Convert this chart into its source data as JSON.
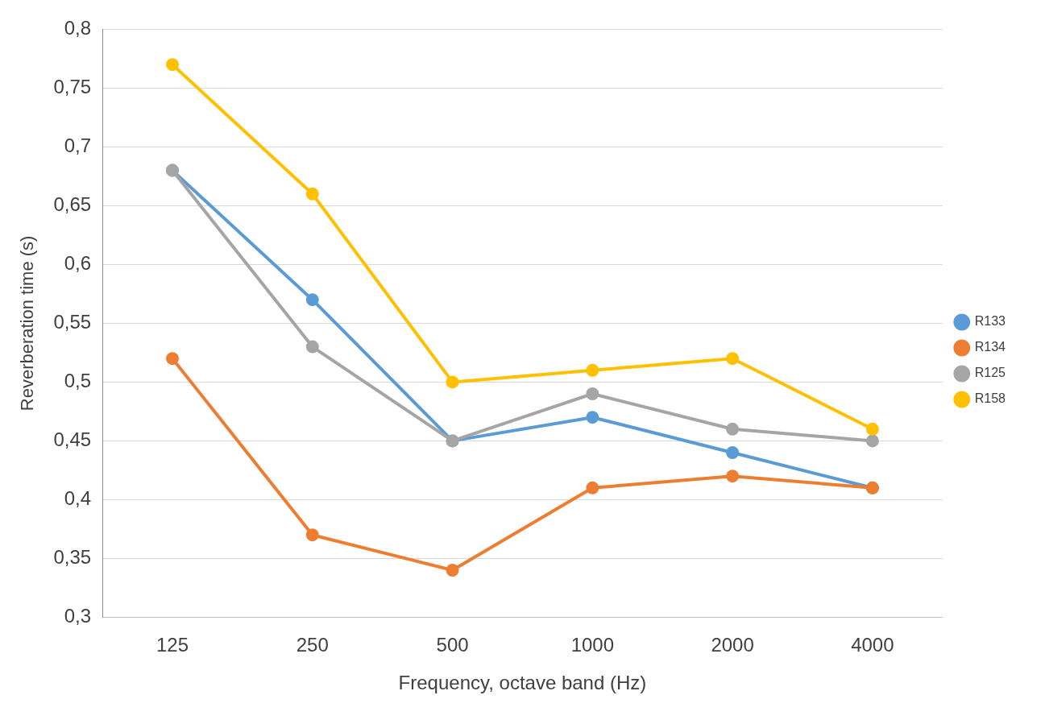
{
  "chart_data": {
    "type": "line",
    "xlabel": "Frequency, octave band (Hz)",
    "ylabel": "Reverberation time (s)",
    "categories": [
      "125",
      "250",
      "500",
      "1000",
      "2000",
      "4000"
    ],
    "series": [
      {
        "name": "R133",
        "color": "#5b9bd5",
        "values": [
          0.68,
          0.57,
          0.45,
          0.47,
          0.44,
          0.41
        ]
      },
      {
        "name": "R134",
        "color": "#ed7d31",
        "values": [
          0.52,
          0.37,
          0.34,
          0.41,
          0.42,
          0.41
        ]
      },
      {
        "name": "R125",
        "color": "#a5a5a5",
        "values": [
          0.68,
          0.53,
          0.45,
          0.49,
          0.46,
          0.45
        ]
      },
      {
        "name": "R158",
        "color": "#ffc000",
        "values": [
          0.77,
          0.66,
          0.5,
          0.51,
          0.52,
          0.46
        ]
      }
    ],
    "ylim": [
      0.3,
      0.8
    ],
    "yticks": [
      {
        "value": 0.3,
        "label": "0,3"
      },
      {
        "value": 0.35,
        "label": "0,35"
      },
      {
        "value": 0.4,
        "label": "0,4"
      },
      {
        "value": 0.45,
        "label": "0,45"
      },
      {
        "value": 0.5,
        "label": "0,5"
      },
      {
        "value": 0.55,
        "label": "0,55"
      },
      {
        "value": 0.6,
        "label": "0,6"
      },
      {
        "value": 0.65,
        "label": "0,65"
      },
      {
        "value": 0.7,
        "label": "0,7"
      },
      {
        "value": 0.75,
        "label": "0,75"
      },
      {
        "value": 0.8,
        "label": "0,8"
      }
    ],
    "grid": "y",
    "legend": "right",
    "marker": "circle",
    "line_style": "solid"
  }
}
